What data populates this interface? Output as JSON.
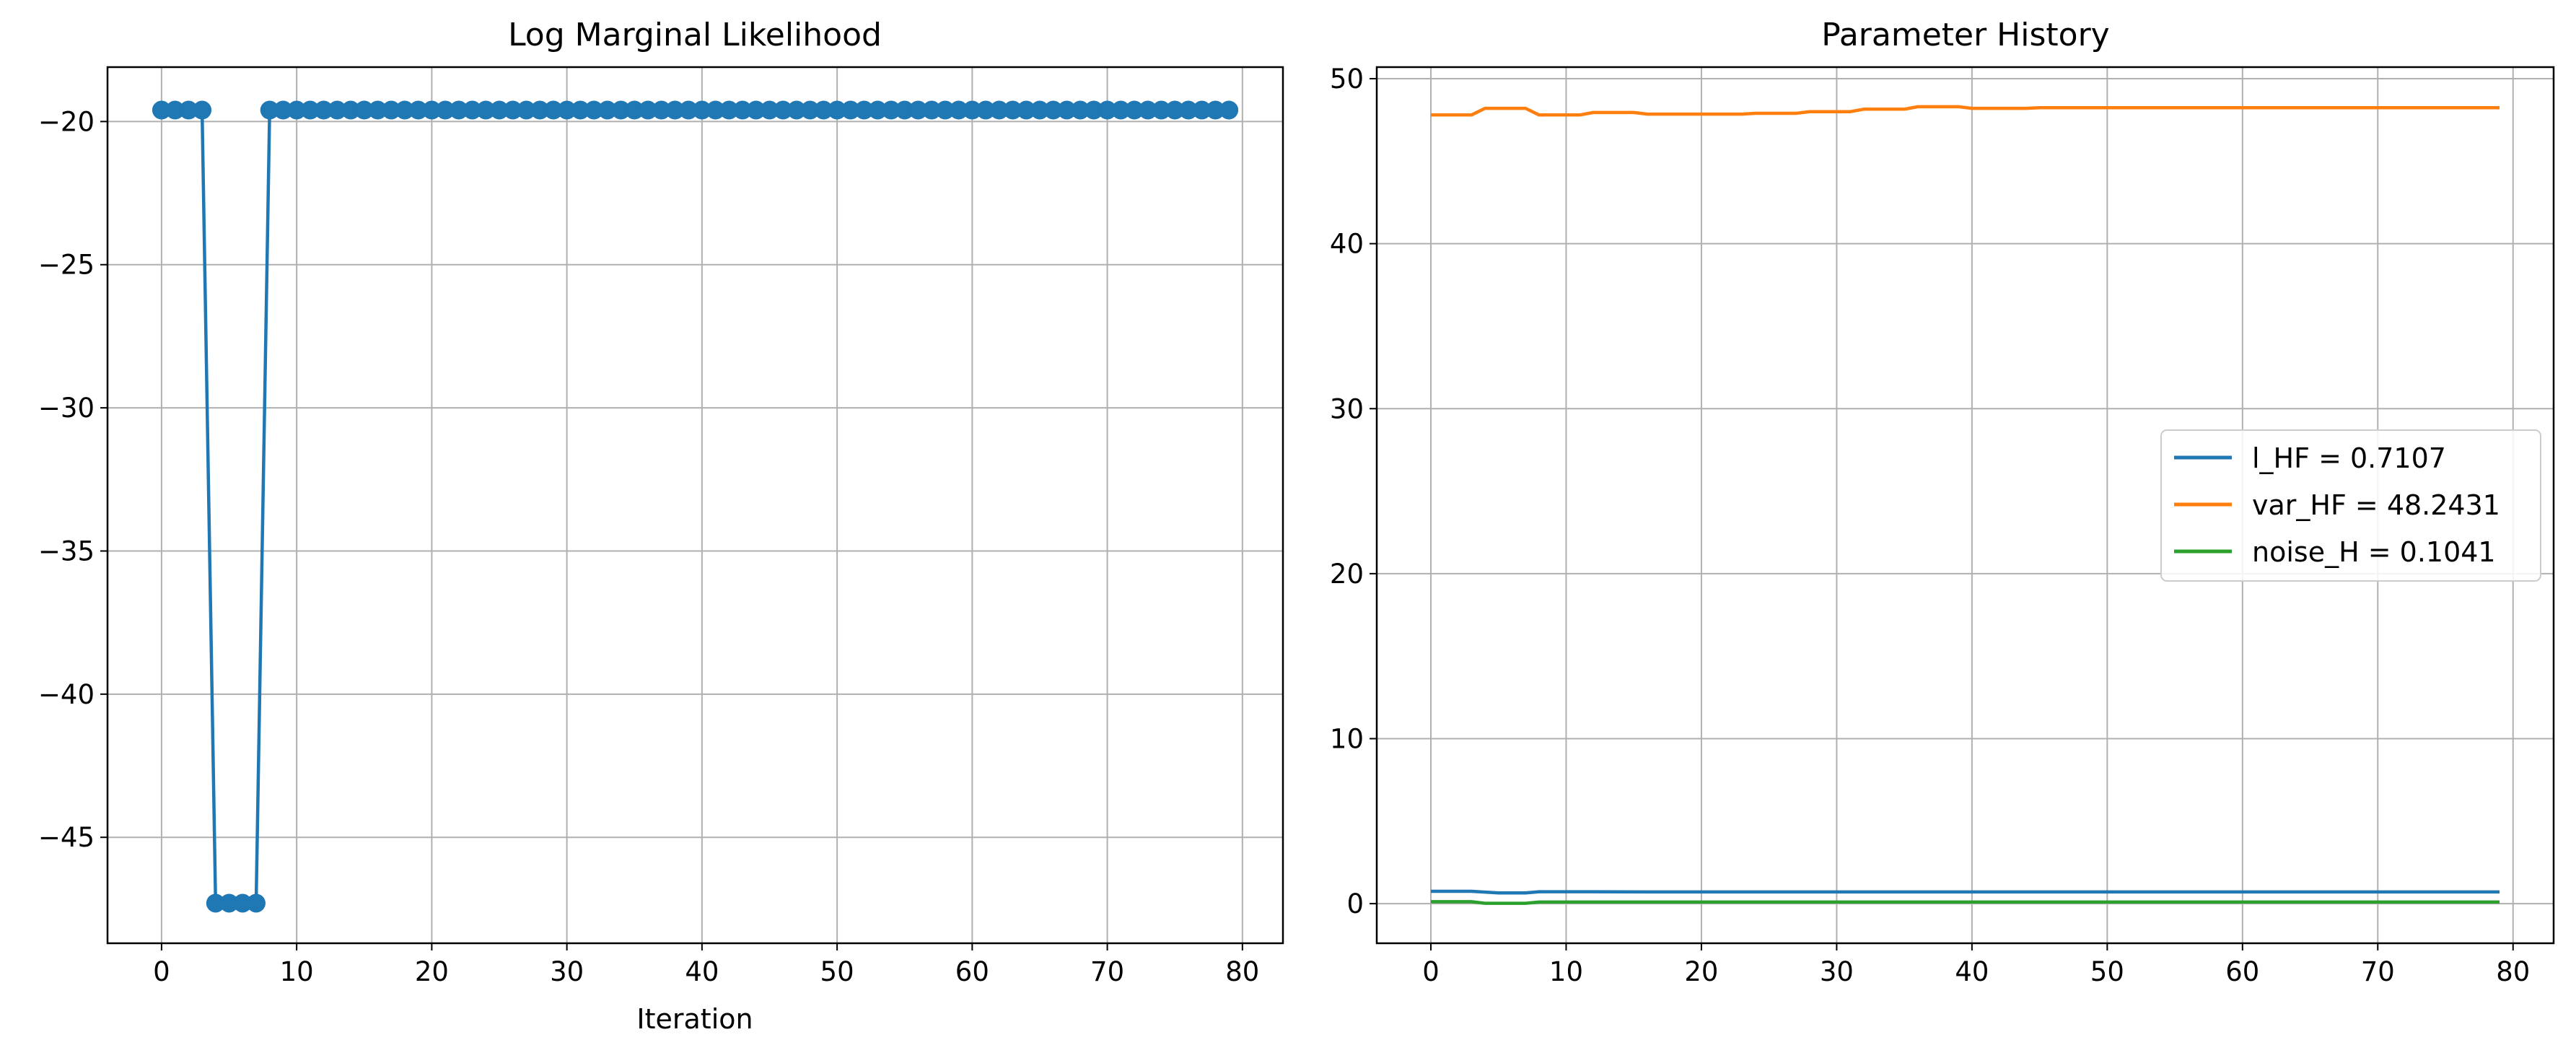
{
  "figure": {
    "panels": [
      {
        "title": "Log Marginal Likelihood",
        "xlabel": "Iteration",
        "ylabel": ""
      },
      {
        "title": "Parameter History",
        "xlabel": "",
        "ylabel": ""
      }
    ]
  },
  "chart_data": [
    {
      "type": "line",
      "title": "Log Marginal Likelihood",
      "xlabel": "Iteration",
      "ylabel": "",
      "markers": true,
      "grid": true,
      "xlim": [
        -4,
        83
      ],
      "ylim": [
        -48.7,
        -18.1
      ],
      "xticks": [
        0,
        10,
        20,
        30,
        40,
        50,
        60,
        70,
        80
      ],
      "yticks": [
        -45,
        -40,
        -35,
        -30,
        -25,
        -20
      ],
      "series": [
        {
          "color": "#1f77b4",
          "x": [
            0,
            1,
            2,
            3,
            4,
            5,
            6,
            7,
            8,
            9,
            10,
            11,
            12,
            13,
            14,
            15,
            16,
            17,
            18,
            19,
            20,
            21,
            22,
            23,
            24,
            25,
            26,
            27,
            28,
            29,
            30,
            31,
            32,
            33,
            34,
            35,
            36,
            37,
            38,
            39,
            40,
            41,
            42,
            43,
            44,
            45,
            46,
            47,
            48,
            49,
            50,
            51,
            52,
            53,
            54,
            55,
            56,
            57,
            58,
            59,
            60,
            61,
            62,
            63,
            64,
            65,
            66,
            67,
            68,
            69,
            70,
            71,
            72,
            73,
            74,
            75,
            76,
            77,
            78,
            79
          ],
          "values": [
            -19.6,
            -19.6,
            -19.6,
            -19.6,
            -47.3,
            -47.3,
            -47.3,
            -47.3,
            -19.6,
            -19.6,
            -19.6,
            -19.6,
            -19.6,
            -19.6,
            -19.6,
            -19.6,
            -19.6,
            -19.6,
            -19.6,
            -19.6,
            -19.6,
            -19.6,
            -19.6,
            -19.6,
            -19.6,
            -19.6,
            -19.6,
            -19.6,
            -19.6,
            -19.6,
            -19.6,
            -19.6,
            -19.6,
            -19.6,
            -19.6,
            -19.6,
            -19.6,
            -19.6,
            -19.6,
            -19.6,
            -19.6,
            -19.6,
            -19.6,
            -19.6,
            -19.6,
            -19.6,
            -19.6,
            -19.6,
            -19.6,
            -19.6,
            -19.6,
            -19.6,
            -19.6,
            -19.6,
            -19.6,
            -19.6,
            -19.6,
            -19.6,
            -19.6,
            -19.6,
            -19.6,
            -19.6,
            -19.6,
            -19.6,
            -19.6,
            -19.6,
            -19.6,
            -19.6,
            -19.6,
            -19.6,
            -19.6,
            -19.6,
            -19.6,
            -19.6,
            -19.6,
            -19.6,
            -19.6,
            -19.6,
            -19.6,
            -19.6
          ]
        }
      ]
    },
    {
      "type": "line",
      "title": "Parameter History",
      "xlabel": "",
      "ylabel": "",
      "markers": false,
      "grid": true,
      "legend": "center-right",
      "xlim": [
        -4,
        83
      ],
      "ylim": [
        -2.4,
        50.7
      ],
      "xticks": [
        0,
        10,
        20,
        30,
        40,
        50,
        60,
        70,
        80
      ],
      "yticks": [
        0,
        10,
        20,
        30,
        40,
        50
      ],
      "series": [
        {
          "name": "l_HF = 0.7107",
          "color": "#1f77b4",
          "x": [
            0,
            3,
            5,
            7,
            8,
            12,
            16,
            20,
            24,
            28,
            32,
            36,
            40,
            50,
            60,
            70,
            79
          ],
          "values": [
            0.75,
            0.75,
            0.65,
            0.65,
            0.72,
            0.72,
            0.71,
            0.71,
            0.71,
            0.71,
            0.71,
            0.71,
            0.71,
            0.71,
            0.71,
            0.71,
            0.71
          ]
        },
        {
          "name": "var_HF = 48.2431",
          "color": "#ff7f0e",
          "x": [
            0,
            3,
            4,
            7,
            8,
            11,
            12,
            15,
            16,
            23,
            24,
            27,
            28,
            31,
            32,
            35,
            36,
            39,
            40,
            44,
            45,
            79
          ],
          "values": [
            47.8,
            47.8,
            48.2,
            48.2,
            47.8,
            47.8,
            47.95,
            47.95,
            47.85,
            47.85,
            47.9,
            47.9,
            48.0,
            48.0,
            48.15,
            48.15,
            48.3,
            48.3,
            48.2,
            48.2,
            48.24,
            48.24
          ]
        },
        {
          "name": "noise_H = 0.1041",
          "color": "#2ca02c",
          "x": [
            0,
            3,
            4,
            7,
            8,
            12,
            20,
            40,
            60,
            79
          ],
          "values": [
            0.12,
            0.12,
            0.02,
            0.02,
            0.1,
            0.1,
            0.1,
            0.1,
            0.1,
            0.1
          ]
        }
      ]
    }
  ]
}
